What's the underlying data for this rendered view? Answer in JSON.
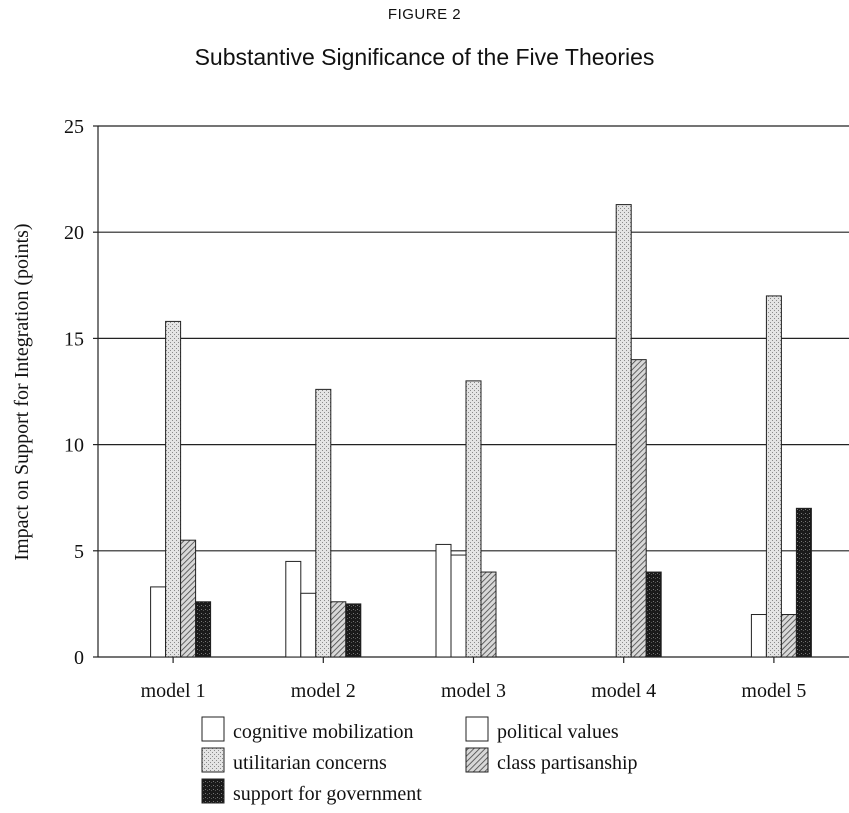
{
  "figure_label": "FIGURE 2",
  "chart_data": {
    "type": "bar",
    "title": "Substantive Significance of the Five Theories",
    "xlabel": "",
    "ylabel": "Impact on Support for Integration (points)",
    "ylim": [
      0,
      25
    ],
    "yticks": [
      0,
      5,
      10,
      15,
      20,
      25
    ],
    "grid": true,
    "legend_position": "bottom",
    "categories": [
      "model 1",
      "model 2",
      "model 3",
      "model 4",
      "model 5"
    ],
    "series": [
      {
        "name": "cognitive mobilization",
        "values": [
          null,
          4.5,
          5.3,
          null,
          null
        ],
        "pattern": "white"
      },
      {
        "name": "political values",
        "values": [
          3.3,
          3.0,
          4.8,
          null,
          2.0
        ],
        "pattern": "white"
      },
      {
        "name": "utilitarian concerns",
        "values": [
          15.8,
          12.6,
          13.0,
          21.3,
          17.0
        ],
        "pattern": "stipple"
      },
      {
        "name": "class partisanship",
        "values": [
          5.5,
          2.6,
          4.0,
          14.0,
          2.0
        ],
        "pattern": "hatch"
      },
      {
        "name": "support for government",
        "values": [
          2.6,
          2.5,
          null,
          4.0,
          7.0
        ],
        "pattern": "dark"
      }
    ]
  }
}
